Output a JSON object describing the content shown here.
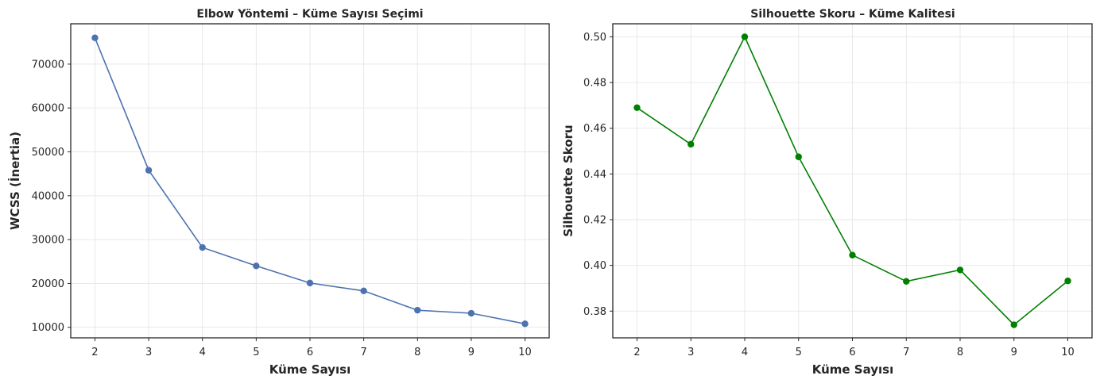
{
  "chart_data": [
    {
      "type": "line",
      "title": "Elbow Yöntemi – Küme Sayısı Seçimi",
      "xlabel": "Küme Sayısı",
      "ylabel": "WCSS (İnertia)",
      "x": [
        2,
        3,
        4,
        5,
        6,
        7,
        8,
        9,
        10
      ],
      "xlim": [
        1.55,
        10.45
      ],
      "ylim": [
        7600,
        79200
      ],
      "xticks": [
        2,
        3,
        4,
        5,
        6,
        7,
        8,
        9,
        10
      ],
      "yticks": [
        10000,
        20000,
        30000,
        40000,
        50000,
        60000,
        70000
      ],
      "grid": true,
      "series": [
        {
          "values": [
            76000,
            45800,
            28200,
            24000,
            20100,
            18300,
            13900,
            13200,
            10800
          ],
          "color": "#4c72b0"
        }
      ]
    },
    {
      "type": "line",
      "title": "Silhouette Skoru – Küme Kalitesi",
      "xlabel": "Küme Sayısı",
      "ylabel": "Silhouette Skoru",
      "x": [
        2,
        3,
        4,
        5,
        6,
        7,
        8,
        9,
        10
      ],
      "xlim": [
        1.55,
        10.45
      ],
      "ylim": [
        0.3683,
        0.5057
      ],
      "xticks": [
        2,
        3,
        4,
        5,
        6,
        7,
        8,
        9,
        10
      ],
      "yticks": [
        0.38,
        0.4,
        0.42,
        0.44,
        0.46,
        0.48,
        0.5
      ],
      "ytick_labels": [
        "0.38",
        "0.40",
        "0.42",
        "0.44",
        "0.46",
        "0.48",
        "0.50"
      ],
      "grid": true,
      "series": [
        {
          "values": [
            0.469,
            0.453,
            0.5,
            0.4475,
            0.4045,
            0.393,
            0.398,
            0.374,
            0.3932
          ],
          "color": "#008000"
        }
      ]
    }
  ]
}
